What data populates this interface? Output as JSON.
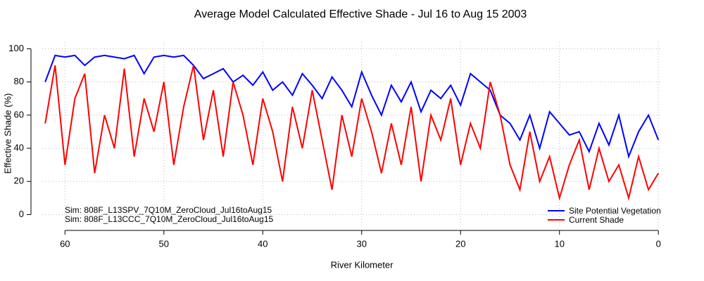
{
  "chart_data": {
    "type": "line",
    "title": "Average Model Calculated Effective Shade -  Jul 16 to Aug 15 2003",
    "x_label": "River Kilometer",
    "y_label": "Effective Shade (%)",
    "annotations": [
      "Sim: 808F_L13SPV_7Q10M_ZeroCloud_Jul16toAug15",
      "Sim: 808F_L13CCC_7Q10M_ZeroCloud_Jul16toAug15"
    ],
    "x": [
      62,
      61,
      60,
      59,
      58,
      57,
      56,
      55,
      54,
      53,
      52,
      51,
      50,
      49,
      48,
      47,
      46,
      45,
      44,
      43,
      42,
      41,
      40,
      39,
      38,
      37,
      36,
      35,
      34,
      33,
      32,
      31,
      30,
      29,
      28,
      27,
      26,
      25,
      24,
      23,
      22,
      21,
      20,
      19,
      18,
      17,
      16,
      15,
      14,
      13,
      12,
      11,
      10,
      9,
      8,
      7,
      6,
      5,
      4,
      3,
      2,
      1,
      0
    ],
    "series": [
      {
        "name": "Site Potential Vegetation",
        "color": "#0000ff",
        "values": [
          80,
          96,
          95,
          96,
          90,
          95,
          96,
          95,
          94,
          96,
          85,
          95,
          96,
          95,
          96,
          90,
          82,
          85,
          88,
          80,
          84,
          78,
          86,
          75,
          80,
          72,
          85,
          78,
          70,
          83,
          75,
          65,
          86,
          72,
          60,
          78,
          68,
          80,
          62,
          75,
          70,
          78,
          66,
          85,
          80,
          75,
          60,
          55,
          45,
          60,
          40,
          62,
          55,
          48,
          50,
          38,
          55,
          42,
          60,
          35,
          50,
          60,
          45
        ]
      },
      {
        "name": "Current Shade",
        "color": "#ff0000",
        "values": [
          55,
          90,
          30,
          70,
          85,
          25,
          60,
          40,
          88,
          35,
          70,
          50,
          80,
          30,
          65,
          90,
          45,
          75,
          35,
          80,
          60,
          30,
          70,
          50,
          20,
          65,
          40,
          75,
          45,
          15,
          60,
          35,
          70,
          50,
          25,
          55,
          30,
          65,
          20,
          60,
          45,
          70,
          30,
          55,
          40,
          80,
          60,
          30,
          15,
          50,
          20,
          35,
          10,
          30,
          45,
          15,
          40,
          20,
          30,
          10,
          35,
          15,
          25
        ]
      }
    ],
    "xlim": [
      62.3,
      -0.2
    ],
    "ylim": [
      -7,
      104
    ],
    "xticks": [
      60,
      50,
      40,
      30,
      20,
      10,
      0
    ],
    "yticks": [
      0,
      20,
      40,
      60,
      80,
      100
    ],
    "grid": true,
    "legend": "bottom-right"
  }
}
